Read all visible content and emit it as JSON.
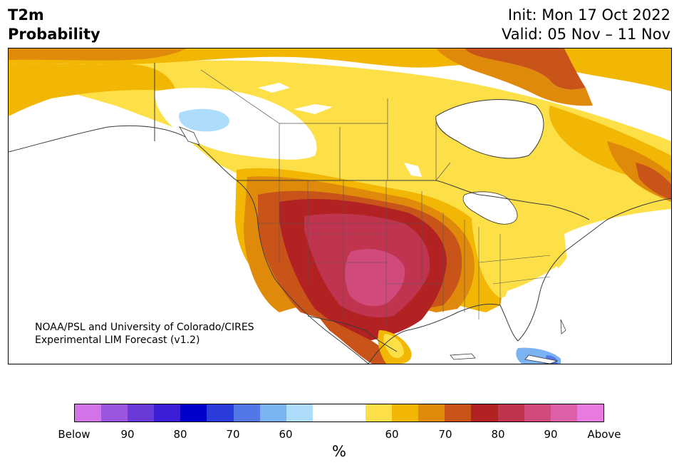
{
  "header": {
    "variable": "T2m",
    "product": "Probability",
    "init": "Init: Mon 17 Oct 2022",
    "valid": "Valid: 05 Nov – 11 Nov"
  },
  "map": {
    "credit_line1": "NOAA/PSL and University of Colorado/CIRES",
    "credit_line2": "Experimental LIM Forecast (v1.2)"
  },
  "colorbar": {
    "unit": "%",
    "colors": [
      "#d473e8",
      "#9b55e0",
      "#6a3ad9",
      "#3b1fd6",
      "#0000cc",
      "#2a3ddb",
      "#5477e8",
      "#7ab2f2",
      "#aedcfb",
      "#ffffff",
      "#ffffff",
      "#fde047",
      "#f2b705",
      "#e08a0c",
      "#c8541a",
      "#b22222",
      "#c0344f",
      "#d04b7b",
      "#dc5fa8",
      "#e87ae0"
    ],
    "ticks": [
      "Below",
      "90",
      "80",
      "70",
      "60",
      "60",
      "70",
      "80",
      "90",
      "Above"
    ]
  },
  "colors": {
    "above_60": "#fde047",
    "above_65": "#f2b705",
    "above_70": "#e08a0c",
    "above_75": "#c8541a",
    "above_80": "#b22222",
    "above_85": "#c0344f",
    "above_90": "#d04b7b",
    "below_60": "#aedcfb",
    "below_70": "#7ab2f2",
    "below_80": "#5477e8"
  }
}
